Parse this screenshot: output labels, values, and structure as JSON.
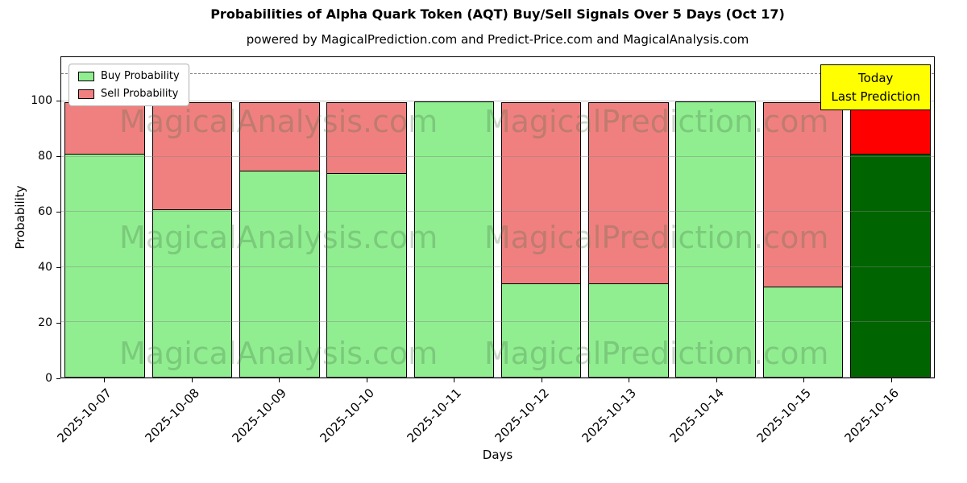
{
  "title": "Probabilities of Alpha Quark Token (AQT) Buy/Sell Signals Over 5 Days (Oct 17)",
  "subtitle": "powered by MagicalPrediction.com and Predict-Price.com and MagicalAnalysis.com",
  "legend": [
    {
      "label": "Buy Probability",
      "color": "#90EE90"
    },
    {
      "label": "Sell Probability",
      "color": "#F08080"
    }
  ],
  "annotation": {
    "line1": "Today",
    "line2": "Last Prediction",
    "bg_color": "#FFFF00"
  },
  "watermarks": {
    "left_text": "MagicalAnalysis.com",
    "right_text": "MagicalPrediction.com"
  },
  "chart_data": {
    "type": "bar",
    "stacked": true,
    "title": "Probabilities of Alpha Quark Token (AQT) Buy/Sell Signals Over 5 Days (Oct 17)",
    "xlabel": "Days",
    "ylabel": "Probability",
    "categories": [
      "2025-10-07",
      "2025-10-08",
      "2025-10-09",
      "2025-10-10",
      "2025-10-11",
      "2025-10-12",
      "2025-10-13",
      "2025-10-14",
      "2025-10-15",
      "2025-10-16"
    ],
    "series": [
      {
        "name": "Buy Probability",
        "values": [
          81,
          61,
          75,
          74,
          100,
          34,
          34,
          100,
          33,
          81
        ],
        "colors": [
          "#90EE90",
          "#90EE90",
          "#90EE90",
          "#90EE90",
          "#90EE90",
          "#90EE90",
          "#90EE90",
          "#90EE90",
          "#90EE90",
          "#006400"
        ]
      },
      {
        "name": "Sell Probability",
        "values": [
          19,
          39,
          25,
          26,
          0,
          66,
          66,
          0,
          67,
          19
        ],
        "colors": [
          "#F08080",
          "#F08080",
          "#F08080",
          "#F08080",
          "#F08080",
          "#F08080",
          "#F08080",
          "#F08080",
          "#F08080",
          "#FF0000"
        ]
      }
    ],
    "yticks": [
      0,
      20,
      40,
      60,
      80,
      100
    ],
    "ylim": [
      0,
      116
    ],
    "grid": true,
    "legend_position": "upper left",
    "dashed_line_y": 110
  }
}
